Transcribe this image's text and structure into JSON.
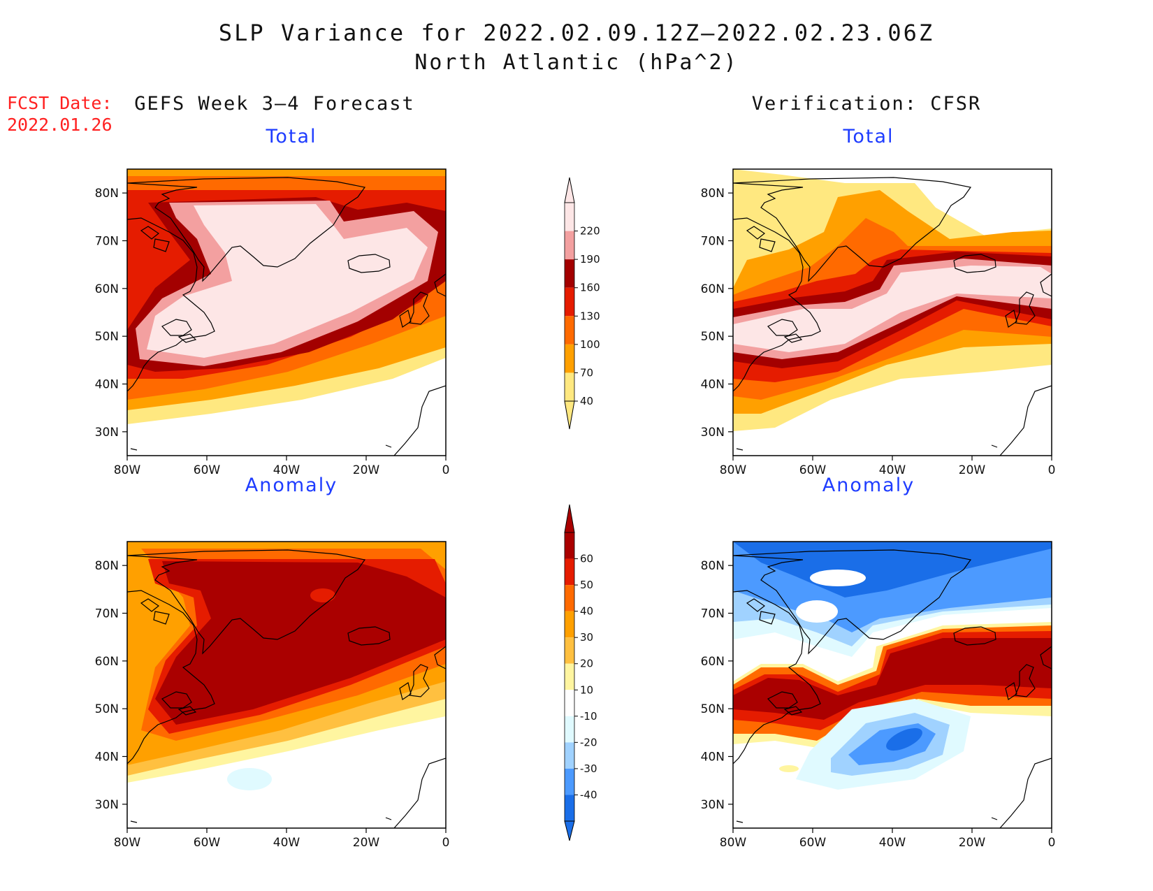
{
  "title": {
    "line1": "SLP Variance for 2022.02.09.12Z–2022.02.23.06Z",
    "line2": "North Atlantic (hPa^2)"
  },
  "fcst": {
    "line1": "FCST Date:",
    "line2": "2022.01.26"
  },
  "columns": {
    "left": "GEFS Week 3–4 Forecast",
    "right": "Verification: CFSR"
  },
  "panels": {
    "forecast_total": "Total",
    "verification_total": "Total",
    "forecast_anomaly": "Anomaly",
    "verification_anomaly": "Anomaly"
  },
  "axes": {
    "lat_labels": [
      "80N",
      "70N",
      "60N",
      "50N",
      "40N",
      "30N"
    ],
    "lon_labels": [
      "80W",
      "60W",
      "40W",
      "20W",
      "0"
    ],
    "lat_values": [
      80,
      70,
      60,
      50,
      40,
      30
    ],
    "lon_values": [
      -80,
      -60,
      -40,
      -20,
      0
    ],
    "lat_range": [
      25,
      85
    ],
    "lon_range": [
      -80,
      0
    ]
  },
  "colorbars": {
    "total": {
      "labels": [
        "220",
        "190",
        "160",
        "130",
        "100",
        "70",
        "40"
      ],
      "colors_top_to_bottom": [
        "#fde6e6",
        "#f3a0a0",
        "#a30000",
        "#e51c00",
        "#ff6a00",
        "#ffa000",
        "#ffe880"
      ]
    },
    "anomaly": {
      "labels": [
        "60",
        "50",
        "40",
        "30",
        "20",
        "10",
        "-10",
        "-20",
        "-30",
        "-40"
      ],
      "colors_top_to_bottom": [
        "#aa0000",
        "#e51c00",
        "#ff6a00",
        "#ffa000",
        "#ffc040",
        "#fff5a0",
        "#ffffff",
        "#e0faff",
        "#a0d2ff",
        "#4c9aff",
        "#1a6ee8"
      ]
    }
  },
  "colors": {
    "title_text": "#111111",
    "fcst_text": "#ff2020",
    "panel_title": "#1e3cff"
  }
}
